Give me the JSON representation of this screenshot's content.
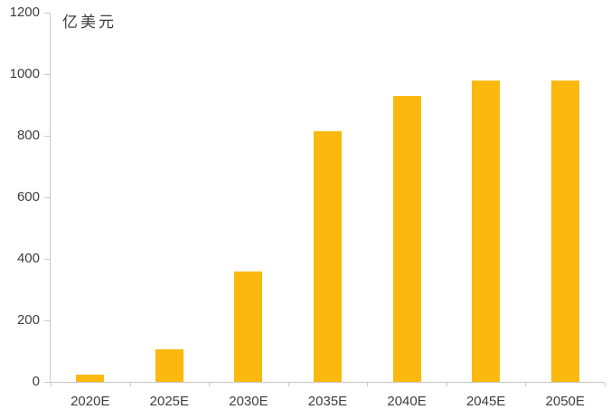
{
  "chart_data": {
    "type": "bar",
    "title": "",
    "xlabel": "",
    "ylabel": "亿美元",
    "categories": [
      "2020E",
      "2025E",
      "2030E",
      "2035E",
      "2040E",
      "2045E",
      "2050E"
    ],
    "values": [
      25,
      105,
      360,
      815,
      930,
      980,
      978
    ],
    "ylim": [
      0,
      1200
    ],
    "yticks": [
      0,
      200,
      400,
      600,
      800,
      1000,
      1200
    ],
    "grid": false,
    "legend_position": "none",
    "bar_color": "#FBB80E",
    "axis_color": "#C8C8C8",
    "text_color": "#3D3D3D"
  }
}
